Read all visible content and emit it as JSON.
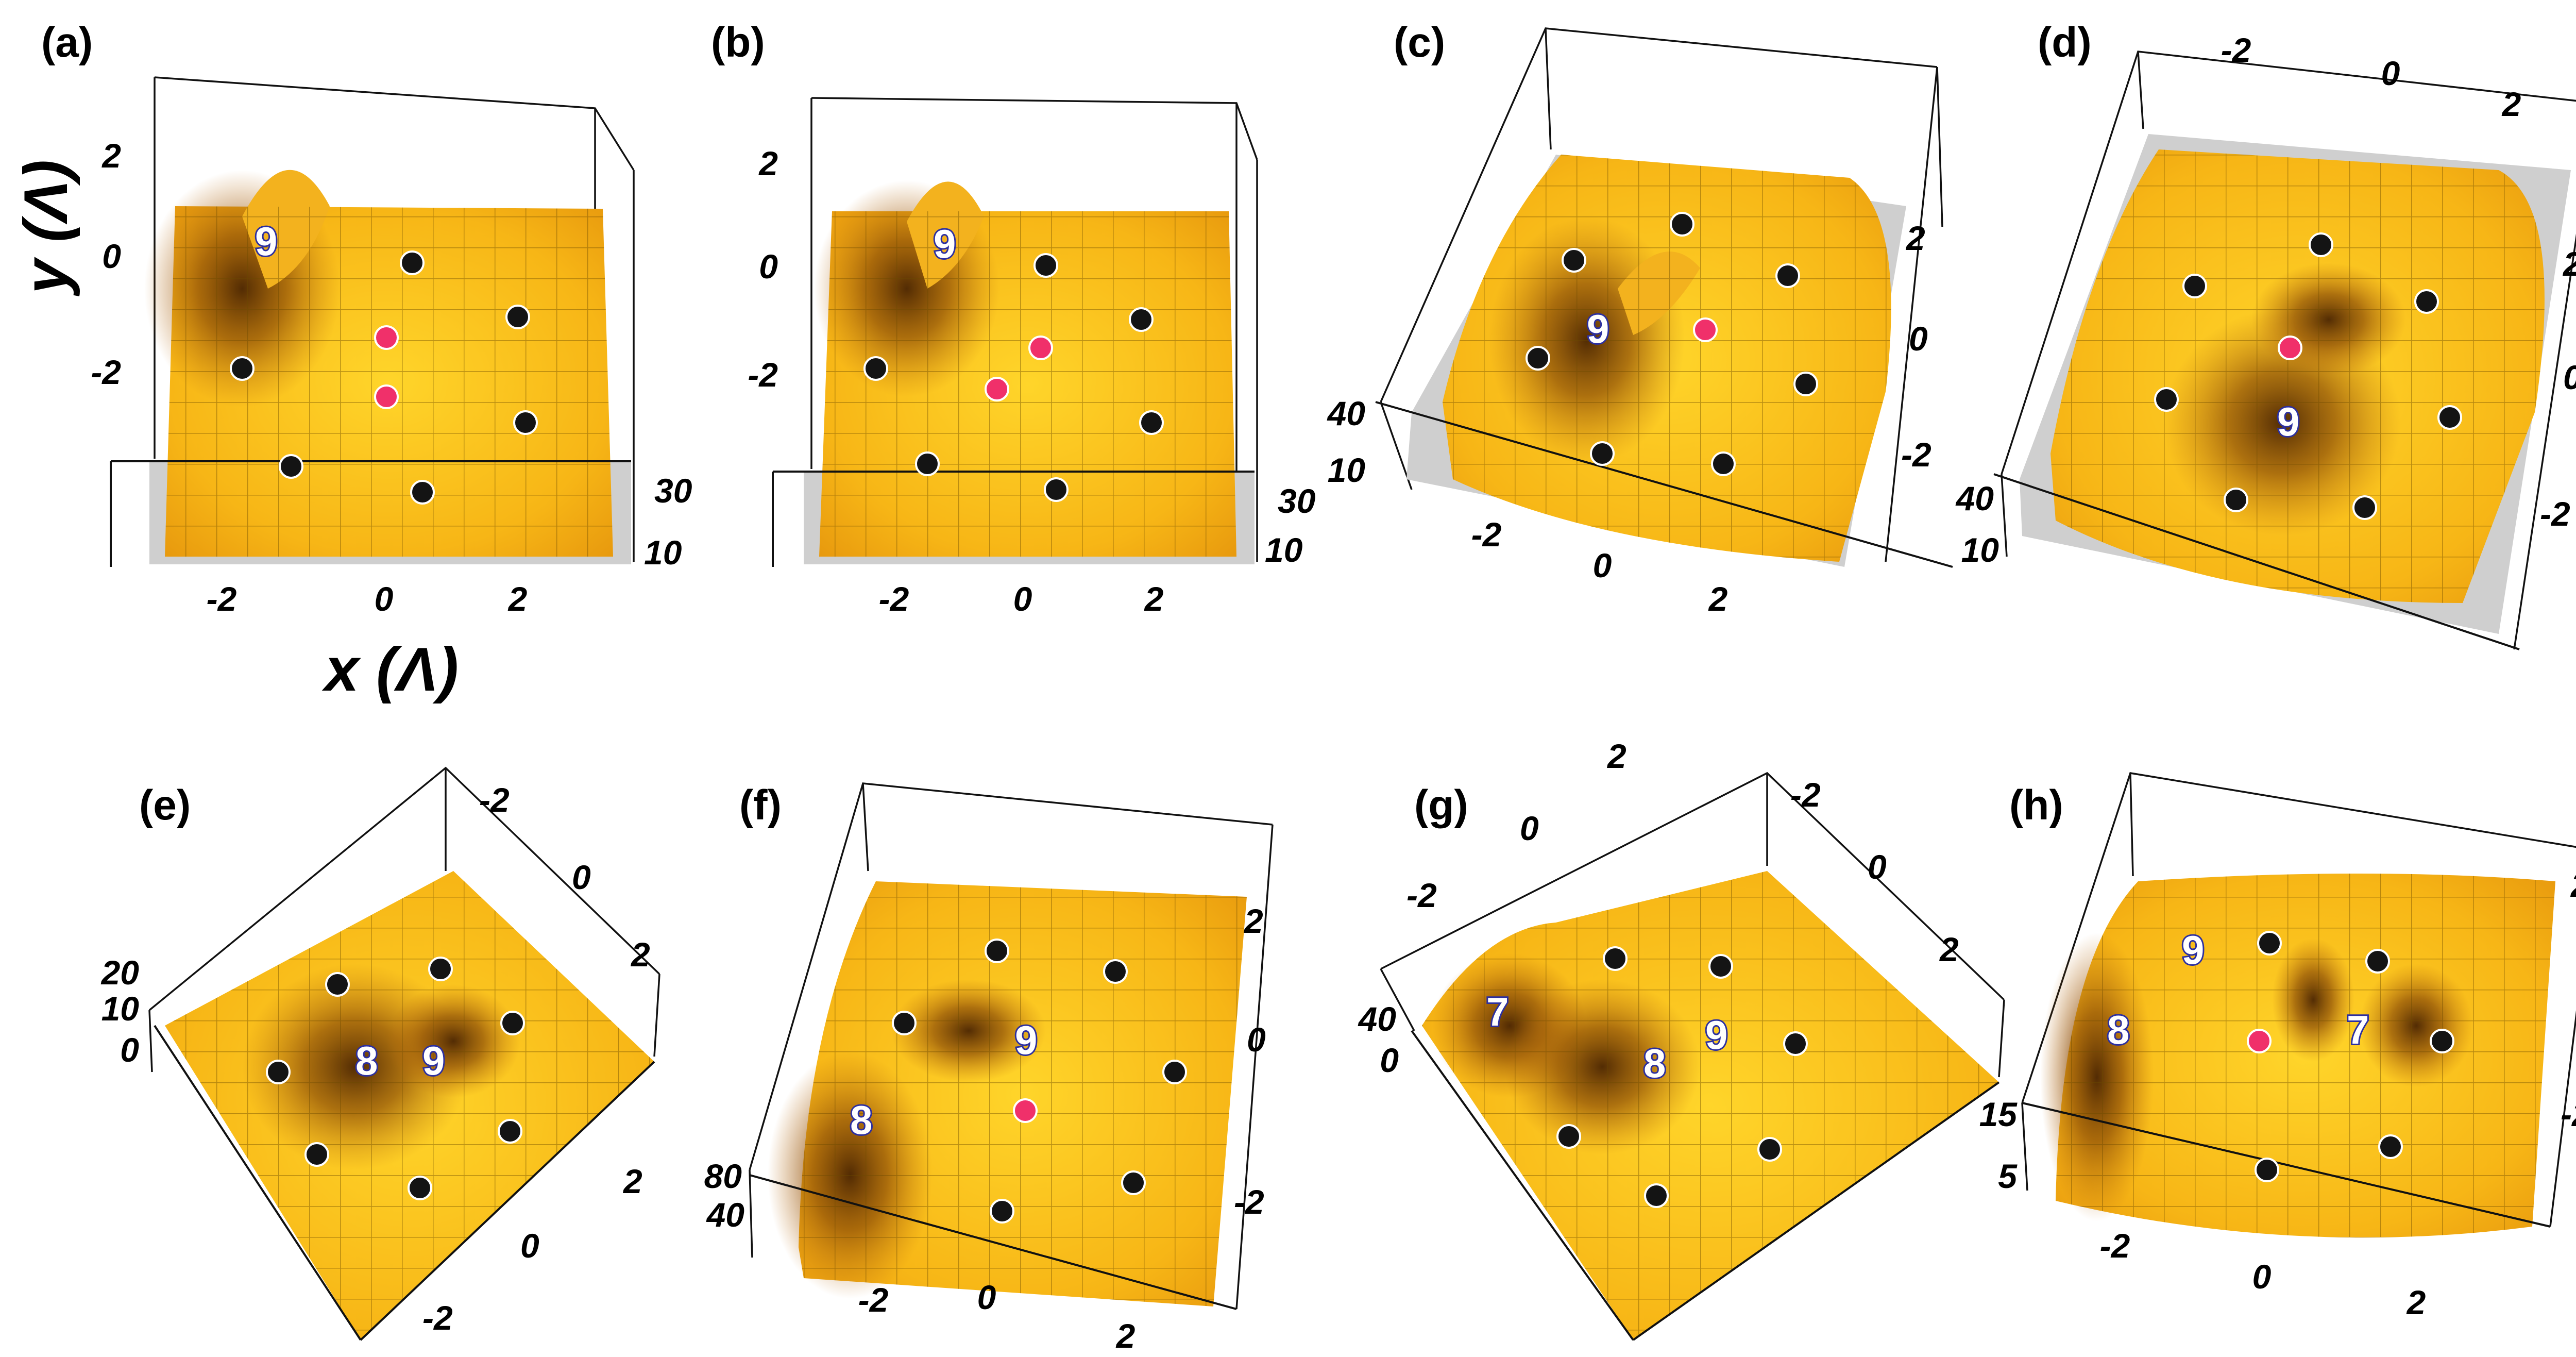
{
  "panels": [
    {
      "label": "(a)",
      "y_axis_label": "y (Λ)",
      "x_axis_label": "x (Λ)",
      "x_ticks": [
        "-2",
        "0",
        "2"
      ],
      "y_ticks": [
        "0",
        "-2"
      ],
      "y_ticks_top": [
        "2"
      ],
      "z_ticks": [
        "30",
        "10"
      ],
      "peak_labels": [
        "9"
      ],
      "markers": {
        "black": 7,
        "red": 2
      }
    },
    {
      "label": "(b)",
      "x_ticks": [
        "-2",
        "0",
        "2"
      ],
      "y_ticks": [
        "2",
        "0",
        "-2"
      ],
      "z_ticks": [
        "30",
        "10"
      ],
      "peak_labels": [
        "9"
      ],
      "markers": {
        "black": 7,
        "red": 2
      }
    },
    {
      "label": "(c)",
      "x_ticks": [
        "-2",
        "0",
        "2"
      ],
      "y_ticks": [
        "2",
        "0",
        "-2"
      ],
      "z_ticks": [
        "40",
        "10"
      ],
      "peak_labels": [
        "9"
      ],
      "markers": {
        "black": 8,
        "red": 1
      }
    },
    {
      "label": "(d)",
      "x_ticks": [
        "-2",
        "0",
        "2"
      ],
      "y_ticks": [
        "2",
        "0",
        "-2"
      ],
      "z_ticks": [
        "40",
        "10"
      ],
      "peak_labels": [
        "9"
      ],
      "markers": {
        "black": 8,
        "red": 1
      }
    },
    {
      "label": "(e)",
      "x_ticks": [
        "-2",
        "0",
        "2"
      ],
      "y_ticks": [
        "2",
        "0",
        "-2"
      ],
      "z_ticks": [
        "20",
        "10",
        "0"
      ],
      "peak_labels": [
        "8",
        "9"
      ],
      "markers": {
        "black": 7,
        "red": 0
      }
    },
    {
      "label": "(f)",
      "x_ticks": [
        "-2",
        "0",
        "2"
      ],
      "y_ticks": [
        "2",
        "0",
        "-2"
      ],
      "z_ticks": [
        "80",
        "40"
      ],
      "peak_labels": [
        "8",
        "9"
      ],
      "markers": {
        "black": 7,
        "red": 1
      }
    },
    {
      "label": "(g)",
      "x_ticks": [
        "2",
        "0",
        "-2"
      ],
      "y_ticks": [
        "-2",
        "0",
        "2"
      ],
      "z_ticks": [
        "40",
        "0"
      ],
      "peak_labels": [
        "7",
        "8",
        "9"
      ],
      "markers": {
        "black": 7,
        "red": 0
      }
    },
    {
      "label": "(h)",
      "x_ticks": [
        "-2",
        "0",
        "2"
      ],
      "y_ticks": [
        "2",
        "0",
        "-2"
      ],
      "z_ticks": [
        "15",
        "5"
      ],
      "peak_labels": [
        "8",
        "9",
        "7"
      ],
      "markers": {
        "black": 7,
        "red": 1
      }
    }
  ],
  "colors": {
    "surface_light": "#ffd21a",
    "surface_mid": "#f0a010",
    "surface_dark": "#5a2e02",
    "corner_gray": "#cfcfcf",
    "marker_black": "#141414",
    "marker_red": "#f0306a",
    "peak_label_outline": "#2c2fa0"
  }
}
